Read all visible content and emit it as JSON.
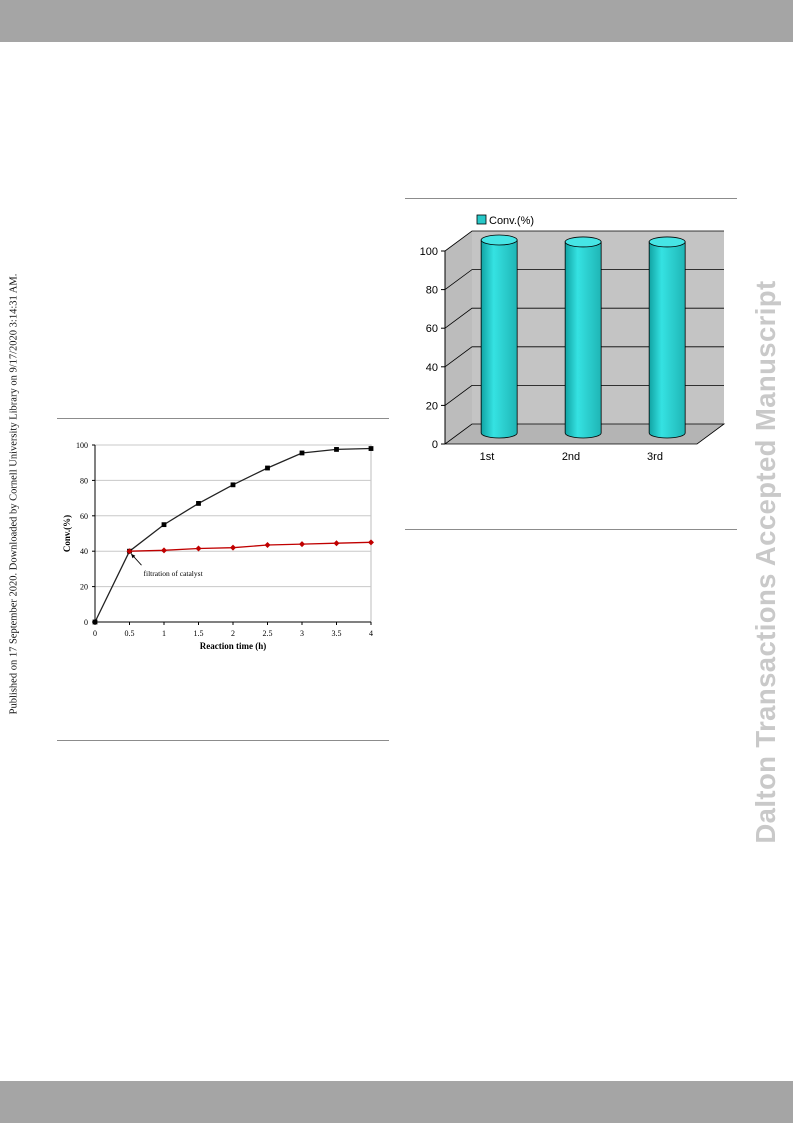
{
  "side_note": "Published on 17 September 2020. Downloaded by Cornell University Library on 9/17/2020 3:14:31 AM.",
  "watermark": "Dalton Transactions Accepted Manuscript",
  "colors": {
    "band": "#a5a5a5",
    "watermark": "#c9c9c9"
  },
  "chart_data": [
    {
      "type": "line",
      "xlabel": "Reaction time (h)",
      "ylabel": "Conv.(%)",
      "xlim": [
        0,
        4
      ],
      "ylim": [
        0,
        100
      ],
      "x_ticks": [
        "0",
        "0.5",
        "1",
        "1.5",
        "2",
        "2.5",
        "3",
        "3.5",
        "4"
      ],
      "y_ticks": [
        "0",
        "20",
        "40",
        "60",
        "80",
        "100"
      ],
      "grid": "horizontal",
      "annotation": "filtration of catalyst",
      "series": [
        {
          "marker": "square",
          "color": "#000000",
          "points": [
            [
              0,
              0
            ],
            [
              0.5,
              40
            ],
            [
              1,
              55
            ],
            [
              1.5,
              67
            ],
            [
              2,
              77.5
            ],
            [
              2.5,
              87
            ],
            [
              3,
              95.5
            ],
            [
              3.5,
              97.5
            ],
            [
              4,
              98
            ]
          ]
        },
        {
          "marker": "diamond",
          "color": "#c00000",
          "points": [
            [
              0.5,
              40
            ],
            [
              1,
              40.5
            ],
            [
              1.5,
              41.5
            ],
            [
              2,
              42
            ],
            [
              2.5,
              43.5
            ],
            [
              3,
              44
            ],
            [
              3.5,
              44.5
            ],
            [
              4,
              45
            ]
          ]
        }
      ]
    },
    {
      "type": "bar",
      "style": "3d-cylinder",
      "categories": [
        "1st",
        "2nd",
        "3rd"
      ],
      "y_ticks": [
        "0",
        "20",
        "40",
        "60",
        "80",
        "100"
      ],
      "ylim": [
        0,
        100
      ],
      "series": [
        {
          "name": "Conv.(%)",
          "color": "#27c8c8",
          "values": [
            100,
            99,
            99
          ]
        }
      ],
      "legend": "top-left"
    }
  ]
}
